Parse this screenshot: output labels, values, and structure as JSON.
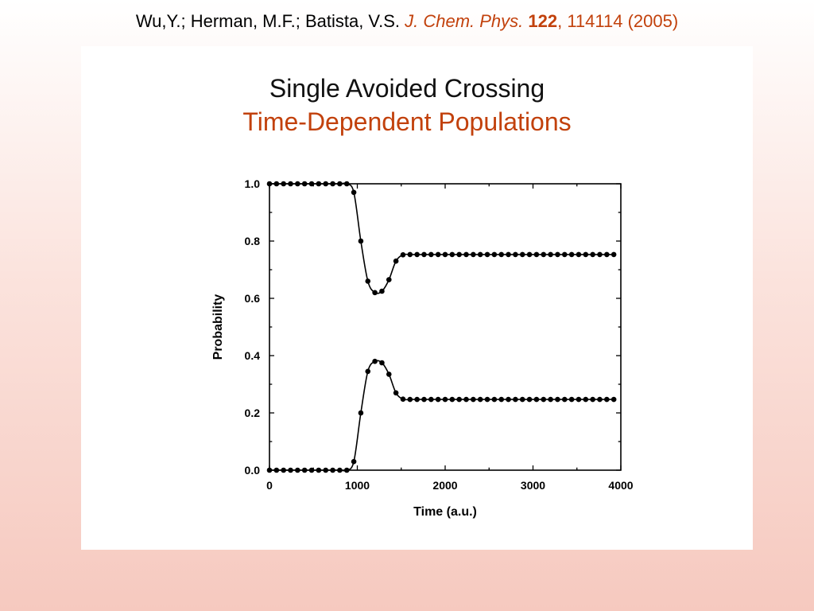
{
  "citation": {
    "authors": "Wu,Y.; Herman, M.F.; Batista, V.S.",
    "journal": "J. Chem. Phys.",
    "volume": "122",
    "rest": ", 114114 (2005)"
  },
  "slide": {
    "title": "Single Avoided Crossing",
    "subtitle": "Time-Dependent Populations"
  },
  "colors": {
    "accent": "#c2410c",
    "text": "#111111"
  },
  "chart_data": {
    "type": "line",
    "xlabel": "Time (a.u.)",
    "ylabel": "Probability",
    "xlim": [
      0,
      4000
    ],
    "ylim": [
      0,
      1.0
    ],
    "xticks": [
      0,
      1000,
      2000,
      3000,
      4000
    ],
    "yticks": [
      0.0,
      0.2,
      0.4,
      0.6,
      0.8,
      1.0
    ],
    "xtick_labels": [
      "0",
      "1000",
      "2000",
      "3000",
      "4000"
    ],
    "ytick_labels": [
      "0.0",
      "0.2",
      "0.4",
      "0.6",
      "0.8",
      "1.0"
    ],
    "grid": false,
    "x": [
      0,
      80,
      160,
      240,
      320,
      400,
      480,
      560,
      640,
      720,
      800,
      880,
      960,
      1040,
      1120,
      1200,
      1280,
      1360,
      1440,
      1520,
      1600,
      1680,
      1760,
      1840,
      1920,
      2000,
      2080,
      2160,
      2240,
      2320,
      2400,
      2480,
      2560,
      2640,
      2720,
      2800,
      2880,
      2960,
      3040,
      3120,
      3200,
      3280,
      3360,
      3440,
      3520,
      3600,
      3680,
      3760,
      3840,
      3920
    ],
    "series": [
      {
        "values": [
          1.0,
          1.0,
          1.0,
          1.0,
          1.0,
          1.0,
          1.0,
          1.0,
          1.0,
          1.0,
          1.0,
          1.0,
          0.97,
          0.8,
          0.66,
          0.62,
          0.625,
          0.665,
          0.73,
          0.752,
          0.753,
          0.753,
          0.753,
          0.753,
          0.753,
          0.753,
          0.753,
          0.753,
          0.753,
          0.753,
          0.753,
          0.753,
          0.753,
          0.753,
          0.753,
          0.753,
          0.753,
          0.753,
          0.753,
          0.753,
          0.753,
          0.753,
          0.753,
          0.753,
          0.753,
          0.753,
          0.753,
          0.753,
          0.753,
          0.753
        ]
      },
      {
        "values": [
          0.0,
          0.0,
          0.0,
          0.0,
          0.0,
          0.0,
          0.0,
          0.0,
          0.0,
          0.0,
          0.0,
          0.0,
          0.03,
          0.2,
          0.345,
          0.38,
          0.375,
          0.335,
          0.27,
          0.248,
          0.247,
          0.247,
          0.247,
          0.247,
          0.247,
          0.247,
          0.247,
          0.247,
          0.247,
          0.247,
          0.247,
          0.247,
          0.247,
          0.247,
          0.247,
          0.247,
          0.247,
          0.247,
          0.247,
          0.247,
          0.247,
          0.247,
          0.247,
          0.247,
          0.247,
          0.247,
          0.247,
          0.247,
          0.247,
          0.247
        ]
      }
    ]
  }
}
